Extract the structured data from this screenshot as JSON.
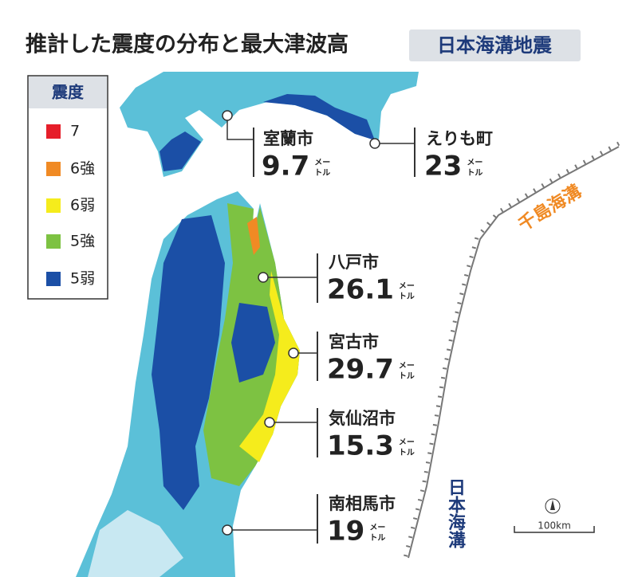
{
  "title": "推計した震度の分布と最大津波高",
  "badge": "日本海溝地震",
  "legend": {
    "title": "震度",
    "items": [
      {
        "label": "7",
        "color": "#e61e2a"
      },
      {
        "label": "6強",
        "color": "#f08a24"
      },
      {
        "label": "6弱",
        "color": "#f5ec1c"
      },
      {
        "label": "5強",
        "color": "#7dc242"
      },
      {
        "label": "5弱",
        "color": "#1b4fa6"
      }
    ]
  },
  "unit": [
    "メー",
    "トル"
  ],
  "cities": [
    {
      "name": "室蘭市",
      "height": 9.7
    },
    {
      "name": "えりも町",
      "height": 23
    },
    {
      "name": "八戸市",
      "height": 26.1
    },
    {
      "name": "宮古市",
      "height": 29.7
    },
    {
      "name": "気仙沼市",
      "height": 15.3
    },
    {
      "name": "南相馬市",
      "height": 19
    }
  ],
  "trenches": [
    "千島海溝",
    "日本海溝"
  ],
  "scale": "100km"
}
